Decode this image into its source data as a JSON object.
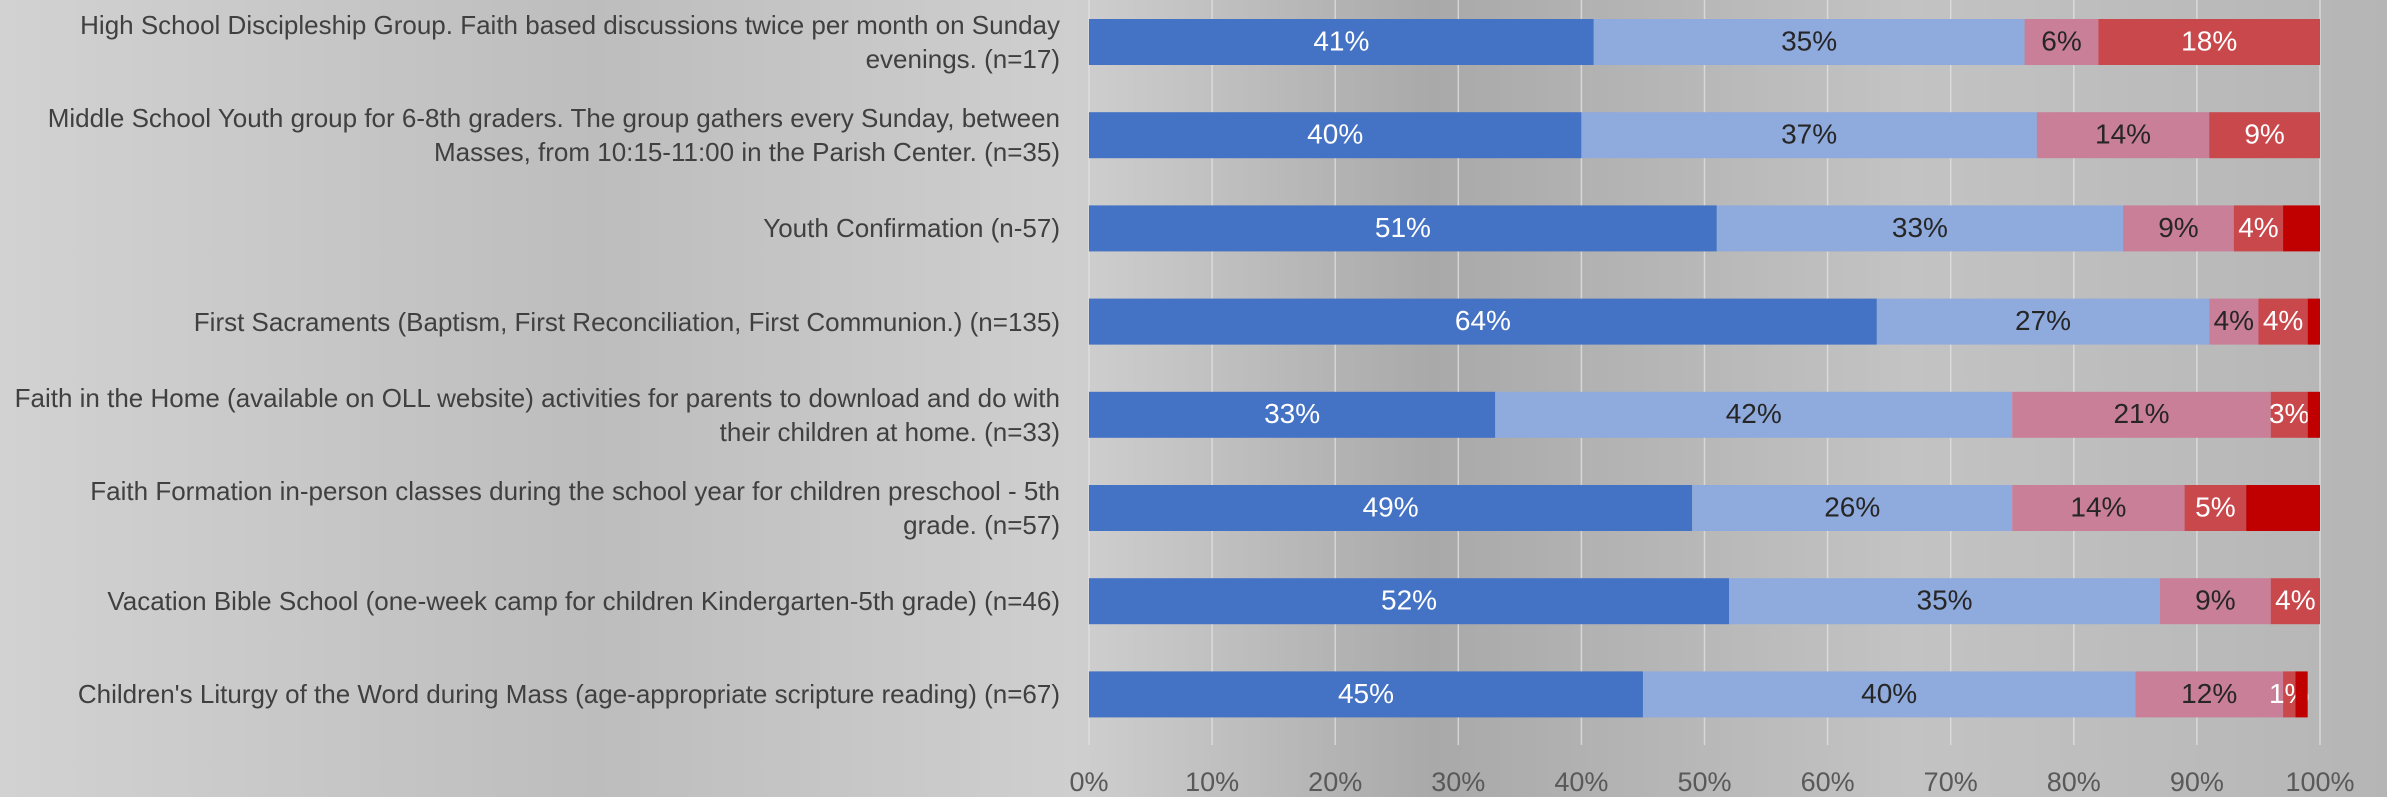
{
  "chart_data": {
    "type": "stacked-bar",
    "orientation": "horizontal",
    "categories": [
      "High School Discipleship Group. Faith based discussions twice per month on Sunday evenings. (n=17)",
      "Middle School Youth group for 6-8th graders. The group gathers every Sunday, between Masses, from 10:15-11:00 in the Parish Center. (n=35)",
      "Youth Confirmation (n-57)",
      "First Sacraments (Baptism, First Reconciliation, First Communion.) (n=135)",
      "Faith in the Home (available on OLL website) activities for parents to download and do with their children at home. (n=33)",
      "Faith Formation in-person classes during the school year for children preschool - 5th grade. (n=57)",
      "Vacation Bible School (one-week camp for children Kindergarten-5th grade) (n=46)",
      "Children's Liturgy of the Word during Mass (age-appropriate scripture reading) (n=67)"
    ],
    "series": [
      {
        "color": "#4472c4",
        "values": [
          41,
          40,
          51,
          64,
          33,
          49,
          52,
          45
        ],
        "value_labels": [
          "41%",
          "40%",
          "51%",
          "64%",
          "33%",
          "49%",
          "52%",
          "45%"
        ]
      },
      {
        "color": "#8faadc",
        "values": [
          35,
          37,
          33,
          27,
          42,
          26,
          35,
          40
        ],
        "value_labels": [
          "35%",
          "37%",
          "33%",
          "27%",
          "42%",
          "26%",
          "35%",
          "40%"
        ]
      },
      {
        "color": "#c97f98",
        "values": [
          6,
          14,
          9,
          4,
          21,
          14,
          9,
          12
        ],
        "value_labels": [
          "6%",
          "14%",
          "9%",
          "4%",
          "21%",
          "14%",
          "9%",
          "12%"
        ]
      },
      {
        "color": "#c9484c",
        "values": [
          18,
          9,
          4,
          4,
          3,
          5,
          4,
          1
        ],
        "value_labels": [
          "18%",
          "9%",
          "4%",
          "4%",
          "3%",
          "5%",
          "4%",
          "1%"
        ]
      },
      {
        "color": "#c00000",
        "values": [
          0,
          0,
          3,
          1,
          1,
          6,
          0,
          1
        ],
        "value_labels": [
          null,
          null,
          null,
          null,
          null,
          null,
          null,
          null
        ]
      }
    ],
    "xlim": [
      0,
      100
    ],
    "xticks": [
      {
        "value": 0,
        "label": "0%"
      },
      {
        "value": 10,
        "label": "10%"
      },
      {
        "value": 20,
        "label": "20%"
      },
      {
        "value": 30,
        "label": "30%"
      },
      {
        "value": 40,
        "label": "40%"
      },
      {
        "value": 50,
        "label": "50%"
      },
      {
        "value": 60,
        "label": "60%"
      },
      {
        "value": 70,
        "label": "70%"
      },
      {
        "value": 80,
        "label": "80%"
      },
      {
        "value": 90,
        "label": "90%"
      },
      {
        "value": 100,
        "label": "100%"
      }
    ],
    "grid": true
  }
}
